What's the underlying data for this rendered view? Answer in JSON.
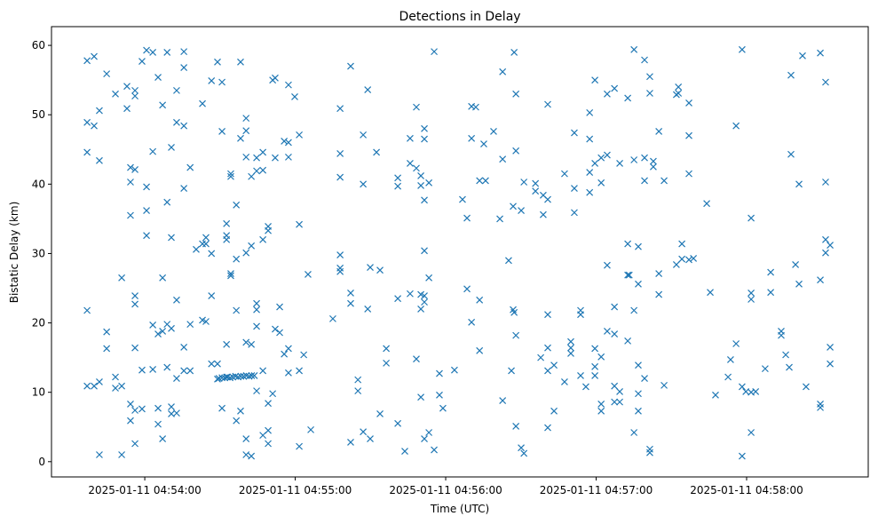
{
  "chart_data": {
    "type": "scatter",
    "title": "Detections in Delay",
    "xlabel": "Time (UTC)",
    "ylabel": "Bistatic Delay (km)",
    "x_units": "seconds after 2025-01-11 04:54:00 UTC",
    "xlim": [
      -37.2,
      288.5
    ],
    "ylim": [
      -2.2,
      62.7
    ],
    "x_ticks": [
      {
        "value": 0,
        "label": "2025-01-11 04:54:00"
      },
      {
        "value": 60,
        "label": "2025-01-11 04:55:00"
      },
      {
        "value": 120,
        "label": "2025-01-11 04:56:00"
      },
      {
        "value": 180,
        "label": "2025-01-11 04:57:00"
      },
      {
        "value": 240,
        "label": "2025-01-11 04:58:00"
      }
    ],
    "y_ticks": [
      0,
      10,
      20,
      30,
      40,
      50,
      60
    ],
    "marker": "x",
    "color": "#1f77b4",
    "grid": false,
    "points": [
      [
        -23.0,
        57.8
      ],
      [
        -23.0,
        48.9
      ],
      [
        -23.0,
        44.6
      ],
      [
        -23.0,
        21.8
      ],
      [
        -23.0,
        10.9
      ],
      [
        -20.2,
        58.4
      ],
      [
        -20.2,
        48.4
      ],
      [
        -20.2,
        10.9
      ],
      [
        -18.1,
        50.6
      ],
      [
        -18.1,
        43.4
      ],
      [
        -18.1,
        11.5
      ],
      [
        -18.1,
        1.0
      ],
      [
        -15.2,
        55.9
      ],
      [
        -15.2,
        18.7
      ],
      [
        -15.2,
        16.3
      ],
      [
        -11.7,
        53.0
      ],
      [
        -11.7,
        12.2
      ],
      [
        -11.7,
        10.6
      ],
      [
        -9.2,
        1.0
      ],
      [
        -9.2,
        26.5
      ],
      [
        -9.2,
        10.9
      ],
      [
        -7.1,
        54.1
      ],
      [
        -7.1,
        50.9
      ],
      [
        -5.7,
        42.4
      ],
      [
        -5.7,
        40.3
      ],
      [
        -5.7,
        35.5
      ],
      [
        -5.7,
        5.9
      ],
      [
        -5.7,
        8.3
      ],
      [
        -3.9,
        53.5
      ],
      [
        -3.9,
        52.7
      ],
      [
        -3.9,
        42.1
      ],
      [
        -3.9,
        23.9
      ],
      [
        -3.9,
        22.7
      ],
      [
        -3.9,
        16.4
      ],
      [
        -3.9,
        7.4
      ],
      [
        -3.9,
        2.6
      ],
      [
        -1.1,
        57.7
      ],
      [
        -1.1,
        13.2
      ],
      [
        -1.1,
        7.6
      ],
      [
        0.7,
        59.3
      ],
      [
        0.7,
        39.6
      ],
      [
        0.7,
        32.6
      ],
      [
        0.7,
        36.2
      ],
      [
        3.2,
        59.0
      ],
      [
        3.2,
        44.7
      ],
      [
        3.2,
        19.7
      ],
      [
        3.2,
        13.3
      ],
      [
        5.3,
        55.4
      ],
      [
        5.3,
        7.7
      ],
      [
        5.3,
        5.4
      ],
      [
        5.3,
        18.4
      ],
      [
        7.1,
        18.8
      ],
      [
        7.1,
        3.3
      ],
      [
        7.1,
        51.4
      ],
      [
        7.1,
        26.5
      ],
      [
        8.9,
        59.0
      ],
      [
        8.9,
        37.4
      ],
      [
        8.9,
        19.8
      ],
      [
        8.9,
        13.6
      ],
      [
        10.6,
        32.3
      ],
      [
        10.6,
        19.2
      ],
      [
        10.6,
        7.9
      ],
      [
        10.6,
        6.9
      ],
      [
        10.6,
        45.3
      ],
      [
        12.7,
        48.9
      ],
      [
        12.7,
        53.5
      ],
      [
        12.7,
        23.3
      ],
      [
        12.7,
        7.0
      ],
      [
        12.7,
        12.0
      ],
      [
        15.6,
        56.8
      ],
      [
        15.6,
        59.1
      ],
      [
        15.6,
        48.4
      ],
      [
        15.6,
        39.4
      ],
      [
        15.6,
        16.5
      ],
      [
        15.6,
        13.1
      ],
      [
        18.1,
        42.4
      ],
      [
        18.1,
        19.8
      ],
      [
        18.1,
        13.1
      ],
      [
        20.5,
        30.6
      ],
      [
        23.0,
        51.6
      ],
      [
        23.0,
        31.4
      ],
      [
        23.0,
        20.4
      ],
      [
        24.4,
        32.3
      ],
      [
        24.4,
        31.4
      ],
      [
        24.4,
        20.2
      ],
      [
        26.6,
        54.9
      ],
      [
        26.6,
        30.0
      ],
      [
        26.6,
        23.9
      ],
      [
        26.6,
        14.1
      ],
      [
        29.0,
        57.6
      ],
      [
        29.0,
        14.1
      ],
      [
        29.0,
        11.9
      ],
      [
        30.8,
        54.7
      ],
      [
        30.8,
        47.6
      ],
      [
        30.8,
        7.7
      ],
      [
        32.6,
        34.3
      ],
      [
        32.6,
        32.6
      ],
      [
        32.6,
        32.0
      ],
      [
        32.6,
        16.9
      ],
      [
        32.6,
        12.2
      ],
      [
        34.3,
        41.5
      ],
      [
        34.3,
        27.1
      ],
      [
        34.3,
        26.8
      ],
      [
        34.3,
        41.1
      ],
      [
        36.5,
        37.0
      ],
      [
        36.5,
        29.2
      ],
      [
        36.5,
        21.8
      ],
      [
        36.5,
        5.9
      ],
      [
        38.2,
        57.6
      ],
      [
        38.2,
        46.6
      ],
      [
        38.2,
        7.3
      ],
      [
        40.4,
        30.1
      ],
      [
        40.4,
        43.9
      ],
      [
        40.4,
        47.7
      ],
      [
        40.4,
        49.5
      ],
      [
        40.4,
        17.2
      ],
      [
        40.4,
        3.3
      ],
      [
        40.4,
        1.0
      ],
      [
        42.5,
        16.9
      ],
      [
        42.5,
        41.1
      ],
      [
        42.5,
        31.1
      ],
      [
        42.5,
        0.8
      ],
      [
        44.6,
        43.8
      ],
      [
        44.6,
        41.9
      ],
      [
        44.6,
        21.9
      ],
      [
        44.6,
        19.5
      ],
      [
        44.6,
        22.8
      ],
      [
        44.6,
        10.2
      ],
      [
        47.1,
        42.0
      ],
      [
        47.1,
        44.6
      ],
      [
        47.1,
        32.0
      ],
      [
        47.1,
        3.8
      ],
      [
        47.1,
        13.1
      ],
      [
        49.2,
        33.9
      ],
      [
        49.2,
        33.3
      ],
      [
        49.2,
        8.4
      ],
      [
        49.2,
        2.6
      ],
      [
        49.2,
        4.5
      ],
      [
        51.0,
        55.0
      ],
      [
        51.0,
        9.8
      ],
      [
        52.0,
        43.8
      ],
      [
        52.0,
        19.1
      ],
      [
        52.0,
        55.3
      ],
      [
        53.8,
        22.3
      ],
      [
        53.8,
        18.6
      ],
      [
        55.6,
        15.5
      ],
      [
        55.6,
        46.2
      ],
      [
        57.3,
        46.0
      ],
      [
        57.3,
        43.9
      ],
      [
        57.3,
        54.3
      ],
      [
        57.3,
        12.8
      ],
      [
        57.3,
        16.3
      ],
      [
        59.8,
        52.6
      ],
      [
        61.6,
        47.1
      ],
      [
        61.6,
        34.2
      ],
      [
        61.6,
        13.1
      ],
      [
        61.6,
        2.2
      ],
      [
        63.4,
        15.4
      ],
      [
        65.1,
        27.0
      ],
      [
        66.2,
        4.6
      ],
      [
        29.6,
        12.0
      ],
      [
        30.8,
        12.1
      ],
      [
        31.9,
        12.1
      ],
      [
        33.0,
        12.2
      ],
      [
        34.0,
        12.1
      ],
      [
        35.1,
        12.2
      ],
      [
        36.2,
        12.3
      ],
      [
        37.2,
        12.2
      ],
      [
        38.3,
        12.3
      ],
      [
        39.4,
        12.3
      ],
      [
        40.5,
        12.4
      ],
      [
        41.6,
        12.3
      ],
      [
        42.6,
        12.4
      ],
      [
        43.7,
        12.4
      ],
      [
        75.0,
        20.6
      ],
      [
        77.9,
        29.8
      ],
      [
        77.9,
        27.4
      ],
      [
        77.9,
        41.0
      ],
      [
        77.9,
        44.4
      ],
      [
        77.9,
        50.9
      ],
      [
        77.9,
        27.9
      ],
      [
        82.1,
        57.0
      ],
      [
        82.1,
        2.8
      ],
      [
        82.1,
        24.3
      ],
      [
        82.1,
        22.8
      ],
      [
        85.0,
        11.8
      ],
      [
        85.0,
        10.2
      ],
      [
        87.1,
        47.1
      ],
      [
        87.1,
        40.0
      ],
      [
        87.1,
        4.3
      ],
      [
        88.9,
        53.6
      ],
      [
        88.9,
        22.0
      ],
      [
        89.9,
        28.0
      ],
      [
        89.9,
        3.3
      ],
      [
        92.4,
        44.6
      ],
      [
        93.8,
        27.6
      ],
      [
        93.8,
        6.9
      ],
      [
        96.3,
        16.3
      ],
      [
        96.3,
        14.2
      ],
      [
        100.9,
        40.9
      ],
      [
        100.9,
        39.7
      ],
      [
        100.9,
        5.5
      ],
      [
        100.9,
        23.5
      ],
      [
        103.7,
        1.5
      ],
      [
        105.8,
        43.0
      ],
      [
        105.8,
        46.6
      ],
      [
        105.8,
        24.2
      ],
      [
        108.3,
        42.3
      ],
      [
        108.3,
        51.1
      ],
      [
        108.3,
        14.8
      ],
      [
        110.1,
        41.2
      ],
      [
        110.1,
        39.8
      ],
      [
        110.1,
        22.0
      ],
      [
        110.1,
        24.1
      ],
      [
        110.1,
        9.3
      ],
      [
        111.5,
        46.5
      ],
      [
        111.5,
        48.0
      ],
      [
        111.5,
        37.7
      ],
      [
        111.5,
        23.9
      ],
      [
        111.5,
        23.0
      ],
      [
        111.5,
        30.4
      ],
      [
        111.5,
        3.3
      ],
      [
        113.3,
        40.2
      ],
      [
        113.3,
        26.5
      ],
      [
        113.3,
        4.2
      ],
      [
        115.4,
        59.1
      ],
      [
        115.4,
        1.7
      ],
      [
        117.5,
        12.7
      ],
      [
        117.5,
        9.6
      ],
      [
        118.9,
        7.7
      ],
      [
        123.5,
        13.2
      ],
      [
        126.7,
        37.8
      ],
      [
        128.5,
        35.1
      ],
      [
        128.5,
        24.9
      ],
      [
        130.3,
        51.2
      ],
      [
        130.3,
        46.6
      ],
      [
        130.3,
        20.1
      ],
      [
        132.0,
        51.1
      ],
      [
        133.5,
        40.5
      ],
      [
        133.5,
        23.3
      ],
      [
        133.5,
        16.0
      ],
      [
        135.2,
        45.8
      ],
      [
        135.9,
        40.5
      ],
      [
        139.1,
        47.6
      ],
      [
        141.6,
        35.0
      ],
      [
        142.7,
        43.6
      ],
      [
        142.7,
        56.2
      ],
      [
        142.7,
        8.8
      ],
      [
        145.1,
        29.0
      ],
      [
        146.2,
        13.1
      ],
      [
        146.9,
        36.8
      ],
      [
        146.9,
        21.9
      ],
      [
        147.3,
        59.0
      ],
      [
        147.3,
        21.5
      ],
      [
        148.0,
        53.0
      ],
      [
        148.0,
        44.8
      ],
      [
        148.0,
        5.1
      ],
      [
        148.0,
        18.2
      ],
      [
        150.1,
        36.2
      ],
      [
        150.1,
        2.0
      ],
      [
        151.2,
        40.3
      ],
      [
        151.2,
        1.2
      ],
      [
        155.8,
        40.1
      ],
      [
        155.8,
        39.0
      ],
      [
        157.9,
        15.0
      ],
      [
        158.9,
        38.4
      ],
      [
        158.9,
        35.6
      ],
      [
        160.7,
        51.5
      ],
      [
        160.7,
        37.8
      ],
      [
        160.7,
        13.1
      ],
      [
        160.7,
        4.9
      ],
      [
        160.7,
        21.2
      ],
      [
        160.7,
        16.4
      ],
      [
        163.2,
        13.9
      ],
      [
        163.2,
        7.3
      ],
      [
        167.4,
        41.5
      ],
      [
        167.4,
        11.5
      ],
      [
        169.9,
        17.3
      ],
      [
        169.9,
        16.4
      ],
      [
        169.9,
        15.6
      ],
      [
        171.3,
        47.4
      ],
      [
        171.3,
        39.4
      ],
      [
        171.3,
        35.9
      ],
      [
        173.8,
        21.8
      ],
      [
        173.8,
        21.2
      ],
      [
        173.8,
        12.4
      ],
      [
        175.9,
        10.8
      ],
      [
        177.4,
        46.5
      ],
      [
        177.4,
        50.3
      ],
      [
        177.4,
        41.7
      ],
      [
        177.4,
        38.8
      ],
      [
        179.5,
        55.0
      ],
      [
        179.5,
        43.0
      ],
      [
        179.5,
        12.4
      ],
      [
        179.5,
        16.3
      ],
      [
        179.5,
        13.7
      ],
      [
        182.0,
        40.2
      ],
      [
        182.0,
        15.1
      ],
      [
        182.0,
        8.3
      ],
      [
        182.0,
        7.3
      ],
      [
        182.0,
        43.8
      ],
      [
        184.4,
        53.0
      ],
      [
        184.4,
        44.2
      ],
      [
        184.4,
        28.3
      ],
      [
        184.4,
        18.8
      ],
      [
        187.3,
        53.8
      ],
      [
        187.3,
        22.3
      ],
      [
        187.3,
        18.4
      ],
      [
        187.3,
        10.9
      ],
      [
        187.3,
        8.6
      ],
      [
        189.4,
        10.1
      ],
      [
        189.4,
        8.6
      ],
      [
        189.4,
        43.0
      ],
      [
        192.6,
        52.4
      ],
      [
        192.6,
        31.4
      ],
      [
        192.6,
        26.9
      ],
      [
        193.2,
        26.9
      ],
      [
        192.6,
        17.4
      ],
      [
        195.1,
        43.5
      ],
      [
        195.1,
        59.4
      ],
      [
        195.1,
        21.8
      ],
      [
        195.1,
        4.2
      ],
      [
        196.8,
        25.6
      ],
      [
        196.8,
        31.0
      ],
      [
        196.8,
        13.9
      ],
      [
        196.8,
        7.3
      ],
      [
        196.8,
        9.8
      ],
      [
        199.3,
        57.9
      ],
      [
        199.3,
        43.8
      ],
      [
        199.3,
        40.5
      ],
      [
        199.3,
        12.0
      ],
      [
        201.4,
        55.5
      ],
      [
        201.4,
        53.1
      ],
      [
        201.4,
        1.3
      ],
      [
        201.4,
        1.8
      ],
      [
        202.8,
        42.5
      ],
      [
        202.8,
        43.3
      ],
      [
        205.0,
        47.6
      ],
      [
        205.0,
        27.1
      ],
      [
        205.0,
        24.1
      ],
      [
        207.1,
        40.5
      ],
      [
        207.1,
        11.0
      ],
      [
        212.0,
        28.4
      ],
      [
        212.0,
        52.9
      ],
      [
        212.8,
        54.0
      ],
      [
        212.8,
        53.1
      ],
      [
        214.2,
        29.2
      ],
      [
        214.2,
        31.4
      ],
      [
        217.0,
        47.0
      ],
      [
        217.0,
        51.7
      ],
      [
        217.0,
        41.5
      ],
      [
        217.0,
        29.1
      ],
      [
        218.8,
        29.3
      ],
      [
        224.1,
        37.2
      ],
      [
        225.5,
        24.4
      ],
      [
        227.6,
        9.6
      ],
      [
        232.6,
        12.2
      ],
      [
        233.6,
        14.7
      ],
      [
        235.8,
        48.4
      ],
      [
        235.8,
        17.0
      ],
      [
        238.2,
        59.4
      ],
      [
        238.2,
        0.8
      ],
      [
        238.2,
        10.8
      ],
      [
        239.7,
        10.1
      ],
      [
        241.8,
        35.1
      ],
      [
        241.8,
        24.3
      ],
      [
        241.8,
        23.4
      ],
      [
        241.8,
        4.2
      ],
      [
        241.8,
        10.0
      ],
      [
        243.6,
        10.1
      ],
      [
        247.4,
        13.4
      ],
      [
        249.6,
        27.3
      ],
      [
        249.6,
        24.4
      ],
      [
        253.8,
        18.8
      ],
      [
        253.8,
        18.2
      ],
      [
        255.6,
        15.4
      ],
      [
        257.0,
        13.6
      ],
      [
        257.7,
        55.7
      ],
      [
        257.7,
        44.3
      ],
      [
        259.5,
        28.4
      ],
      [
        260.9,
        25.6
      ],
      [
        260.9,
        40.0
      ],
      [
        262.3,
        58.5
      ],
      [
        263.7,
        10.8
      ],
      [
        269.4,
        58.9
      ],
      [
        269.4,
        26.2
      ],
      [
        269.4,
        8.3
      ],
      [
        269.4,
        7.8
      ],
      [
        271.5,
        40.3
      ],
      [
        271.5,
        54.7
      ],
      [
        271.5,
        32.0
      ],
      [
        271.5,
        30.1
      ],
      [
        273.3,
        14.1
      ],
      [
        273.3,
        31.2
      ],
      [
        273.3,
        16.5
      ]
    ]
  }
}
